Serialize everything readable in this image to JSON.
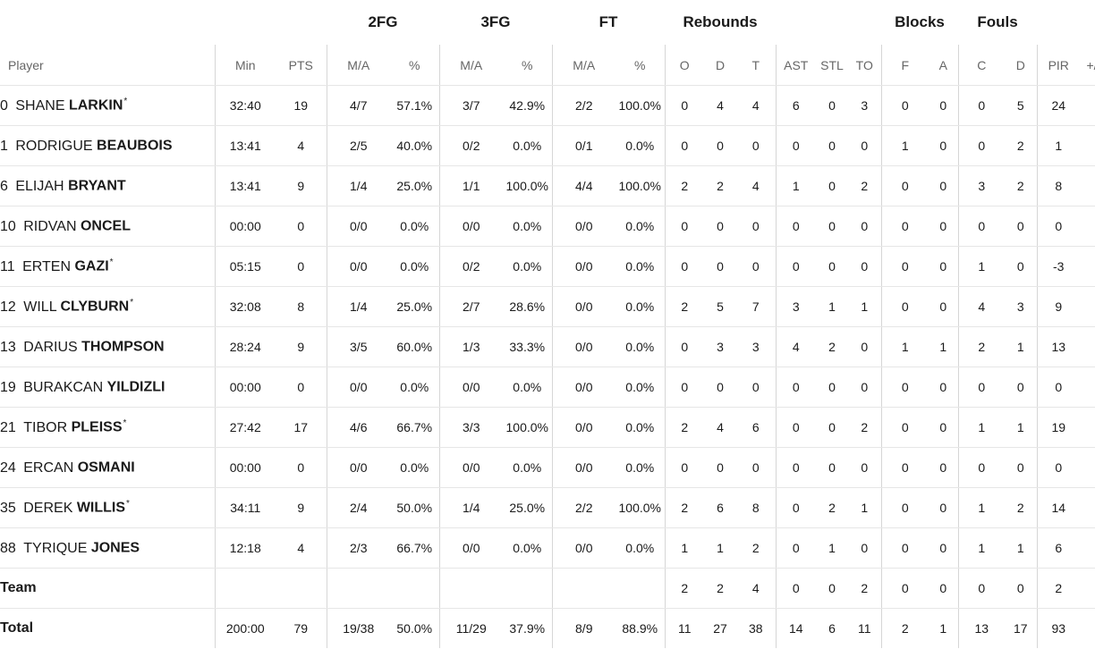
{
  "groups": {
    "fg2": "2FG",
    "fg3": "3FG",
    "ft": "FT",
    "rebounds": "Rebounds",
    "blocks": "Blocks",
    "fouls": "Fouls"
  },
  "columns": {
    "player": "Player",
    "min": "Min",
    "pts": "PTS",
    "fg2_ma": "M/A",
    "fg2_pct": "%",
    "fg3_ma": "M/A",
    "fg3_pct": "%",
    "ft_ma": "M/A",
    "ft_pct": "%",
    "reb_o": "O",
    "reb_d": "D",
    "reb_t": "T",
    "ast": "AST",
    "stl": "STL",
    "to": "TO",
    "blk_f": "F",
    "blk_a": "A",
    "foul_c": "C",
    "foul_d": "D",
    "pir": "PIR",
    "pm": "+/"
  },
  "players": [
    {
      "num": "0",
      "first": "SHANE",
      "last": "LARKIN",
      "starter": "*",
      "min": "32:40",
      "pts": "19",
      "fg2_ma": "4/7",
      "fg2_pct": "57.1%",
      "fg3_ma": "3/7",
      "fg3_pct": "42.9%",
      "ft_ma": "2/2",
      "ft_pct": "100.0%",
      "reb_o": "0",
      "reb_d": "4",
      "reb_t": "4",
      "ast": "6",
      "stl": "0",
      "to": "3",
      "blk_f": "0",
      "blk_a": "0",
      "foul_c": "0",
      "foul_d": "5",
      "pir": "24"
    },
    {
      "num": "1",
      "first": "RODRIGUE",
      "last": "BEAUBOIS",
      "starter": "",
      "min": "13:41",
      "pts": "4",
      "fg2_ma": "2/5",
      "fg2_pct": "40.0%",
      "fg3_ma": "0/2",
      "fg3_pct": "0.0%",
      "ft_ma": "0/1",
      "ft_pct": "0.0%",
      "reb_o": "0",
      "reb_d": "0",
      "reb_t": "0",
      "ast": "0",
      "stl": "0",
      "to": "0",
      "blk_f": "1",
      "blk_a": "0",
      "foul_c": "0",
      "foul_d": "2",
      "pir": "1"
    },
    {
      "num": "6",
      "first": "ELIJAH",
      "last": "BRYANT",
      "starter": "",
      "min": "13:41",
      "pts": "9",
      "fg2_ma": "1/4",
      "fg2_pct": "25.0%",
      "fg3_ma": "1/1",
      "fg3_pct": "100.0%",
      "ft_ma": "4/4",
      "ft_pct": "100.0%",
      "reb_o": "2",
      "reb_d": "2",
      "reb_t": "4",
      "ast": "1",
      "stl": "0",
      "to": "2",
      "blk_f": "0",
      "blk_a": "0",
      "foul_c": "3",
      "foul_d": "2",
      "pir": "8"
    },
    {
      "num": "10",
      "first": "RIDVAN",
      "last": "ONCEL",
      "starter": "",
      "min": "00:00",
      "pts": "0",
      "fg2_ma": "0/0",
      "fg2_pct": "0.0%",
      "fg3_ma": "0/0",
      "fg3_pct": "0.0%",
      "ft_ma": "0/0",
      "ft_pct": "0.0%",
      "reb_o": "0",
      "reb_d": "0",
      "reb_t": "0",
      "ast": "0",
      "stl": "0",
      "to": "0",
      "blk_f": "0",
      "blk_a": "0",
      "foul_c": "0",
      "foul_d": "0",
      "pir": "0"
    },
    {
      "num": "11",
      "first": "ERTEN",
      "last": "GAZI",
      "starter": "*",
      "min": "05:15",
      "pts": "0",
      "fg2_ma": "0/0",
      "fg2_pct": "0.0%",
      "fg3_ma": "0/2",
      "fg3_pct": "0.0%",
      "ft_ma": "0/0",
      "ft_pct": "0.0%",
      "reb_o": "0",
      "reb_d": "0",
      "reb_t": "0",
      "ast": "0",
      "stl": "0",
      "to": "0",
      "blk_f": "0",
      "blk_a": "0",
      "foul_c": "1",
      "foul_d": "0",
      "pir": "-3"
    },
    {
      "num": "12",
      "first": "WILL",
      "last": "CLYBURN",
      "starter": "*",
      "min": "32:08",
      "pts": "8",
      "fg2_ma": "1/4",
      "fg2_pct": "25.0%",
      "fg3_ma": "2/7",
      "fg3_pct": "28.6%",
      "ft_ma": "0/0",
      "ft_pct": "0.0%",
      "reb_o": "2",
      "reb_d": "5",
      "reb_t": "7",
      "ast": "3",
      "stl": "1",
      "to": "1",
      "blk_f": "0",
      "blk_a": "0",
      "foul_c": "4",
      "foul_d": "3",
      "pir": "9"
    },
    {
      "num": "13",
      "first": "DARIUS",
      "last": "THOMPSON",
      "starter": "",
      "min": "28:24",
      "pts": "9",
      "fg2_ma": "3/5",
      "fg2_pct": "60.0%",
      "fg3_ma": "1/3",
      "fg3_pct": "33.3%",
      "ft_ma": "0/0",
      "ft_pct": "0.0%",
      "reb_o": "0",
      "reb_d": "3",
      "reb_t": "3",
      "ast": "4",
      "stl": "2",
      "to": "0",
      "blk_f": "1",
      "blk_a": "1",
      "foul_c": "2",
      "foul_d": "1",
      "pir": "13"
    },
    {
      "num": "19",
      "first": "BURAKCAN",
      "last": "YILDIZLI",
      "starter": "",
      "min": "00:00",
      "pts": "0",
      "fg2_ma": "0/0",
      "fg2_pct": "0.0%",
      "fg3_ma": "0/0",
      "fg3_pct": "0.0%",
      "ft_ma": "0/0",
      "ft_pct": "0.0%",
      "reb_o": "0",
      "reb_d": "0",
      "reb_t": "0",
      "ast": "0",
      "stl": "0",
      "to": "0",
      "blk_f": "0",
      "blk_a": "0",
      "foul_c": "0",
      "foul_d": "0",
      "pir": "0"
    },
    {
      "num": "21",
      "first": "TIBOR",
      "last": "PLEISS",
      "starter": "*",
      "min": "27:42",
      "pts": "17",
      "fg2_ma": "4/6",
      "fg2_pct": "66.7%",
      "fg3_ma": "3/3",
      "fg3_pct": "100.0%",
      "ft_ma": "0/0",
      "ft_pct": "0.0%",
      "reb_o": "2",
      "reb_d": "4",
      "reb_t": "6",
      "ast": "0",
      "stl": "0",
      "to": "2",
      "blk_f": "0",
      "blk_a": "0",
      "foul_c": "1",
      "foul_d": "1",
      "pir": "19"
    },
    {
      "num": "24",
      "first": "ERCAN",
      "last": "OSMANI",
      "starter": "",
      "min": "00:00",
      "pts": "0",
      "fg2_ma": "0/0",
      "fg2_pct": "0.0%",
      "fg3_ma": "0/0",
      "fg3_pct": "0.0%",
      "ft_ma": "0/0",
      "ft_pct": "0.0%",
      "reb_o": "0",
      "reb_d": "0",
      "reb_t": "0",
      "ast": "0",
      "stl": "0",
      "to": "0",
      "blk_f": "0",
      "blk_a": "0",
      "foul_c": "0",
      "foul_d": "0",
      "pir": "0"
    },
    {
      "num": "35",
      "first": "DEREK",
      "last": "WILLIS",
      "starter": "*",
      "min": "34:11",
      "pts": "9",
      "fg2_ma": "2/4",
      "fg2_pct": "50.0%",
      "fg3_ma": "1/4",
      "fg3_pct": "25.0%",
      "ft_ma": "2/2",
      "ft_pct": "100.0%",
      "reb_o": "2",
      "reb_d": "6",
      "reb_t": "8",
      "ast": "0",
      "stl": "2",
      "to": "1",
      "blk_f": "0",
      "blk_a": "0",
      "foul_c": "1",
      "foul_d": "2",
      "pir": "14"
    },
    {
      "num": "88",
      "first": "TYRIQUE",
      "last": "JONES",
      "starter": "",
      "min": "12:18",
      "pts": "4",
      "fg2_ma": "2/3",
      "fg2_pct": "66.7%",
      "fg3_ma": "0/0",
      "fg3_pct": "0.0%",
      "ft_ma": "0/0",
      "ft_pct": "0.0%",
      "reb_o": "1",
      "reb_d": "1",
      "reb_t": "2",
      "ast": "0",
      "stl": "1",
      "to": "0",
      "blk_f": "0",
      "blk_a": "0",
      "foul_c": "1",
      "foul_d": "1",
      "pir": "6"
    }
  ],
  "team": {
    "label": "Team",
    "min": "",
    "pts": "",
    "fg2_ma": "",
    "fg2_pct": "",
    "fg3_ma": "",
    "fg3_pct": "",
    "ft_ma": "",
    "ft_pct": "",
    "reb_o": "2",
    "reb_d": "2",
    "reb_t": "4",
    "ast": "0",
    "stl": "0",
    "to": "2",
    "blk_f": "0",
    "blk_a": "0",
    "foul_c": "0",
    "foul_d": "0",
    "pir": "2"
  },
  "total": {
    "label": "Total",
    "min": "200:00",
    "pts": "79",
    "fg2_ma": "19/38",
    "fg2_pct": "50.0%",
    "fg3_ma": "11/29",
    "fg3_pct": "37.9%",
    "ft_ma": "8/9",
    "ft_pct": "88.9%",
    "reb_o": "11",
    "reb_d": "27",
    "reb_t": "38",
    "ast": "14",
    "stl": "6",
    "to": "11",
    "blk_f": "2",
    "blk_a": "1",
    "foul_c": "13",
    "foul_d": "17",
    "pir": "93"
  }
}
